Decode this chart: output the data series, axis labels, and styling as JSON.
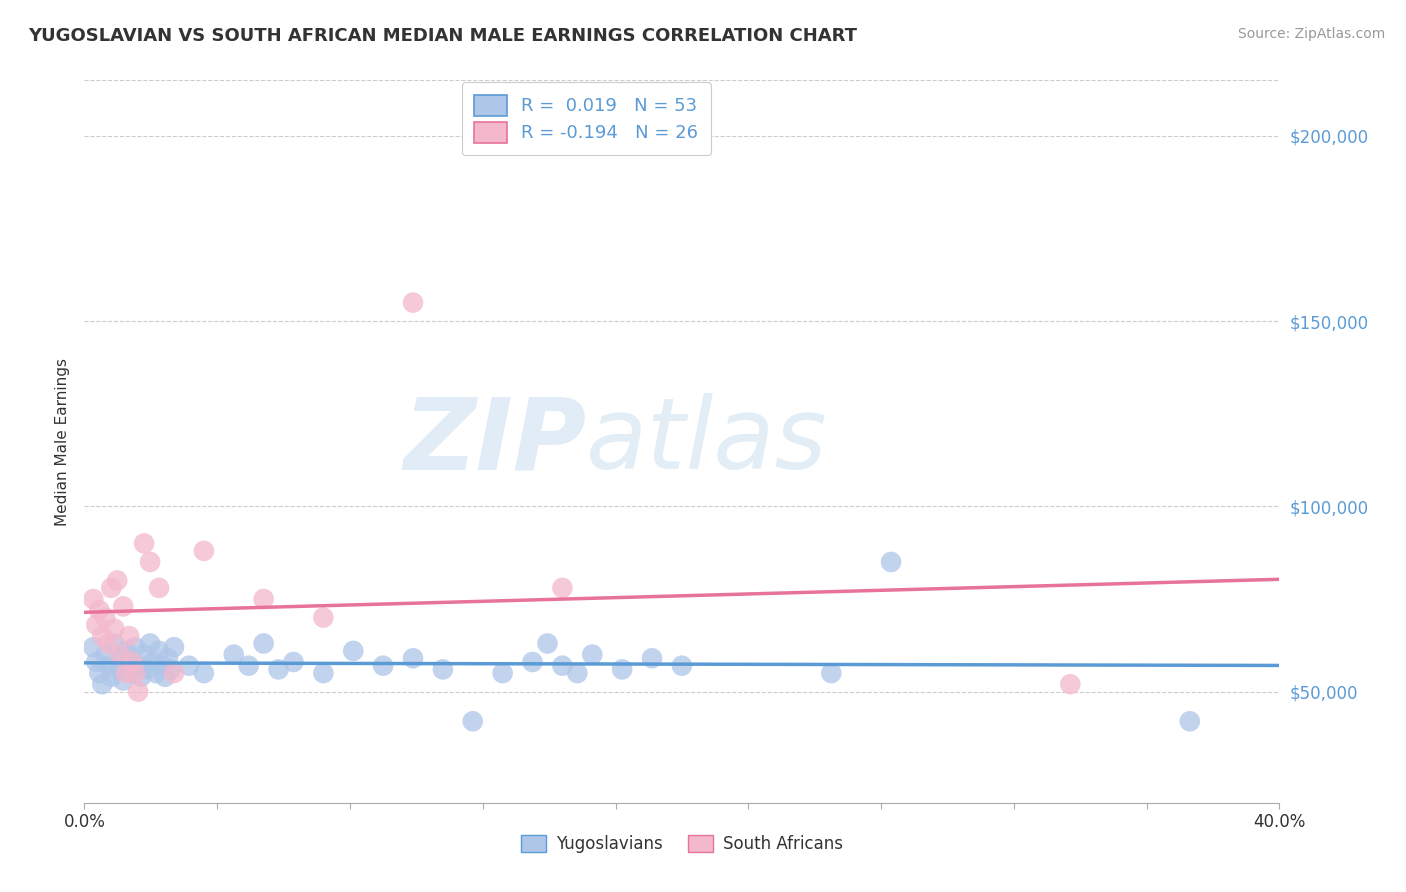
{
  "title": "YUGOSLAVIAN VS SOUTH AFRICAN MEDIAN MALE EARNINGS CORRELATION CHART",
  "source": "Source: ZipAtlas.com",
  "ylabel": "Median Male Earnings",
  "xlim": [
    0.0,
    0.4
  ],
  "ylim": [
    20000,
    215000
  ],
  "yticks": [
    50000,
    100000,
    150000,
    200000
  ],
  "ytick_labels": [
    "$50,000",
    "$100,000",
    "$150,000",
    "$200,000"
  ],
  "xticks": [
    0.0,
    0.04444,
    0.08889,
    0.13333,
    0.17778,
    0.22222,
    0.26667,
    0.31111,
    0.35556,
    0.4
  ],
  "xtick_labels_show": [
    "0.0%",
    "",
    "",
    "",
    "",
    "",
    "",
    "",
    "",
    "40.0%"
  ],
  "legend_labels": [
    "Yugoslavians",
    "South Africans"
  ],
  "blue_color": "#5b9bd5",
  "pink_color": "#e8739a",
  "blue_fill": "#aec6e8",
  "pink_fill": "#f4b8cc",
  "watermark_zip": "ZIP",
  "watermark_atlas": "atlas",
  "background_color": "#ffffff",
  "grid_color": "#cccccc",
  "R_yug": "0.019",
  "N_yug": "53",
  "R_sa": "-0.194",
  "N_sa": "26",
  "yugoslavian_points": [
    [
      0.003,
      62000
    ],
    [
      0.004,
      58000
    ],
    [
      0.005,
      55000
    ],
    [
      0.006,
      52000
    ],
    [
      0.007,
      60000
    ],
    [
      0.008,
      57000
    ],
    [
      0.009,
      54000
    ],
    [
      0.01,
      63000
    ],
    [
      0.011,
      56000
    ],
    [
      0.012,
      59000
    ],
    [
      0.013,
      53000
    ],
    [
      0.014,
      61000
    ],
    [
      0.015,
      58000
    ],
    [
      0.016,
      55000
    ],
    [
      0.017,
      62000
    ],
    [
      0.018,
      57000
    ],
    [
      0.019,
      54000
    ],
    [
      0.02,
      60000
    ],
    [
      0.021,
      56000
    ],
    [
      0.022,
      63000
    ],
    [
      0.023,
      58000
    ],
    [
      0.024,
      55000
    ],
    [
      0.025,
      61000
    ],
    [
      0.026,
      57000
    ],
    [
      0.027,
      54000
    ],
    [
      0.028,
      59000
    ],
    [
      0.029,
      56000
    ],
    [
      0.03,
      62000
    ],
    [
      0.035,
      57000
    ],
    [
      0.04,
      55000
    ],
    [
      0.05,
      60000
    ],
    [
      0.055,
      57000
    ],
    [
      0.06,
      63000
    ],
    [
      0.065,
      56000
    ],
    [
      0.07,
      58000
    ],
    [
      0.08,
      55000
    ],
    [
      0.09,
      61000
    ],
    [
      0.1,
      57000
    ],
    [
      0.11,
      59000
    ],
    [
      0.12,
      56000
    ],
    [
      0.13,
      42000
    ],
    [
      0.14,
      55000
    ],
    [
      0.15,
      58000
    ],
    [
      0.155,
      63000
    ],
    [
      0.16,
      57000
    ],
    [
      0.165,
      55000
    ],
    [
      0.17,
      60000
    ],
    [
      0.18,
      56000
    ],
    [
      0.19,
      59000
    ],
    [
      0.2,
      57000
    ],
    [
      0.25,
      55000
    ],
    [
      0.27,
      85000
    ],
    [
      0.37,
      42000
    ]
  ],
  "southafrican_points": [
    [
      0.003,
      75000
    ],
    [
      0.004,
      68000
    ],
    [
      0.005,
      72000
    ],
    [
      0.006,
      65000
    ],
    [
      0.007,
      70000
    ],
    [
      0.008,
      63000
    ],
    [
      0.009,
      78000
    ],
    [
      0.01,
      67000
    ],
    [
      0.011,
      80000
    ],
    [
      0.012,
      60000
    ],
    [
      0.013,
      73000
    ],
    [
      0.014,
      55000
    ],
    [
      0.015,
      65000
    ],
    [
      0.016,
      58000
    ],
    [
      0.017,
      55000
    ],
    [
      0.018,
      50000
    ],
    [
      0.02,
      90000
    ],
    [
      0.022,
      85000
    ],
    [
      0.025,
      78000
    ],
    [
      0.03,
      55000
    ],
    [
      0.04,
      88000
    ],
    [
      0.06,
      75000
    ],
    [
      0.08,
      70000
    ],
    [
      0.11,
      155000
    ],
    [
      0.16,
      78000
    ],
    [
      0.33,
      52000
    ]
  ]
}
